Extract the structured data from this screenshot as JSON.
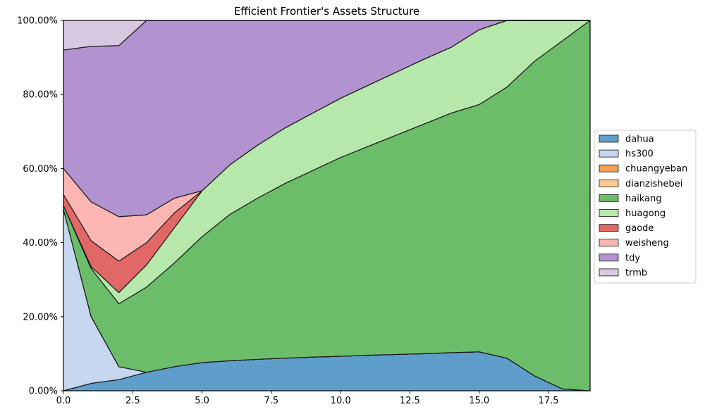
{
  "chart_data": {
    "type": "area",
    "stacked": true,
    "title": "Efficient Frontier's Assets Structure",
    "xlabel": "",
    "ylabel": "",
    "xlim": [
      0,
      19
    ],
    "ylim": [
      0,
      100
    ],
    "x_ticks": [
      0.0,
      2.5,
      5.0,
      7.5,
      10.0,
      12.5,
      15.0,
      17.5
    ],
    "x_tick_labels": [
      "0.0",
      "2.5",
      "5.0",
      "7.5",
      "10.0",
      "12.5",
      "15.0",
      "17.5"
    ],
    "y_ticks": [
      0,
      20,
      40,
      60,
      80,
      100
    ],
    "y_tick_labels": [
      "0.00%",
      "20.00%",
      "40.00%",
      "60.00%",
      "80.00%",
      "100.00%"
    ],
    "grid": true,
    "legend_position": "right",
    "x": [
      0,
      1,
      2,
      3,
      4,
      5,
      6,
      7,
      8,
      9,
      10,
      11,
      12,
      13,
      14,
      15,
      16,
      17,
      18,
      19
    ],
    "series": [
      {
        "name": "dahua",
        "color": "#5f9ecb",
        "values": [
          0,
          2,
          3,
          5,
          6.5,
          7.6,
          8.1,
          8.5,
          8.8,
          9.1,
          9.3,
          9.6,
          9.8,
          10.0,
          10.3,
          10.5,
          8.8,
          4.0,
          0.5,
          0
        ]
      },
      {
        "name": "hs300",
        "color": "#c5d6ee",
        "values": [
          49,
          18,
          3.5,
          0,
          0,
          0,
          0,
          0,
          0,
          0,
          0,
          0,
          0,
          0,
          0,
          0,
          0,
          0,
          0,
          0
        ]
      },
      {
        "name": "chuangyeban",
        "color": "#f5a053",
        "values": [
          0,
          0,
          0,
          0,
          0,
          0,
          0,
          0,
          0,
          0,
          0,
          0,
          0,
          0,
          0,
          0,
          0,
          0,
          0,
          0
        ]
      },
      {
        "name": "dianzishebei",
        "color": "#fbc993",
        "values": [
          0,
          0,
          0,
          0,
          0,
          0,
          0,
          0,
          0,
          0,
          0,
          0,
          0,
          0,
          0,
          0,
          0,
          0,
          0,
          0
        ]
      },
      {
        "name": "haikang",
        "color": "#6cbd6a",
        "values": [
          1,
          13,
          17,
          23,
          28,
          34,
          39.5,
          43.5,
          47.2,
          50.4,
          53.7,
          56.4,
          59.2,
          62.0,
          64.7,
          66.8,
          73.2,
          85.0,
          94.0,
          100
        ]
      },
      {
        "name": "huagong",
        "color": "#b6e7ab",
        "values": [
          0,
          0.5,
          3,
          6,
          9.5,
          12.4,
          13.4,
          14.3,
          15.0,
          15.5,
          16.0,
          16.5,
          17.0,
          17.5,
          17.8,
          20.2,
          18.0,
          11.0,
          5.5,
          0
        ]
      },
      {
        "name": "gaode",
        "color": "#e26868",
        "values": [
          3,
          7,
          8.5,
          6,
          4,
          0,
          0,
          0,
          0,
          0,
          0,
          0,
          0,
          0,
          0,
          0,
          0,
          0,
          0,
          0
        ]
      },
      {
        "name": "weisheng",
        "color": "#fbb5b2",
        "values": [
          7,
          10.5,
          12,
          7.5,
          4,
          0,
          0,
          0,
          0,
          0,
          0,
          0,
          0,
          0,
          0,
          0,
          0,
          0,
          0,
          0
        ]
      },
      {
        "name": "tdy",
        "color": "#b293cf",
        "values": [
          32,
          42,
          46.2,
          52.5,
          48,
          46,
          39,
          33.7,
          29,
          25,
          21,
          17.5,
          14,
          10.5,
          7.2,
          2.5,
          0,
          0,
          0,
          0
        ]
      },
      {
        "name": "trmb",
        "color": "#d7c7e0",
        "values": [
          8,
          7,
          6.8,
          0,
          0,
          0,
          0,
          0,
          0,
          0,
          0,
          0,
          0,
          0,
          0,
          0,
          0,
          0,
          0,
          0
        ]
      }
    ]
  }
}
